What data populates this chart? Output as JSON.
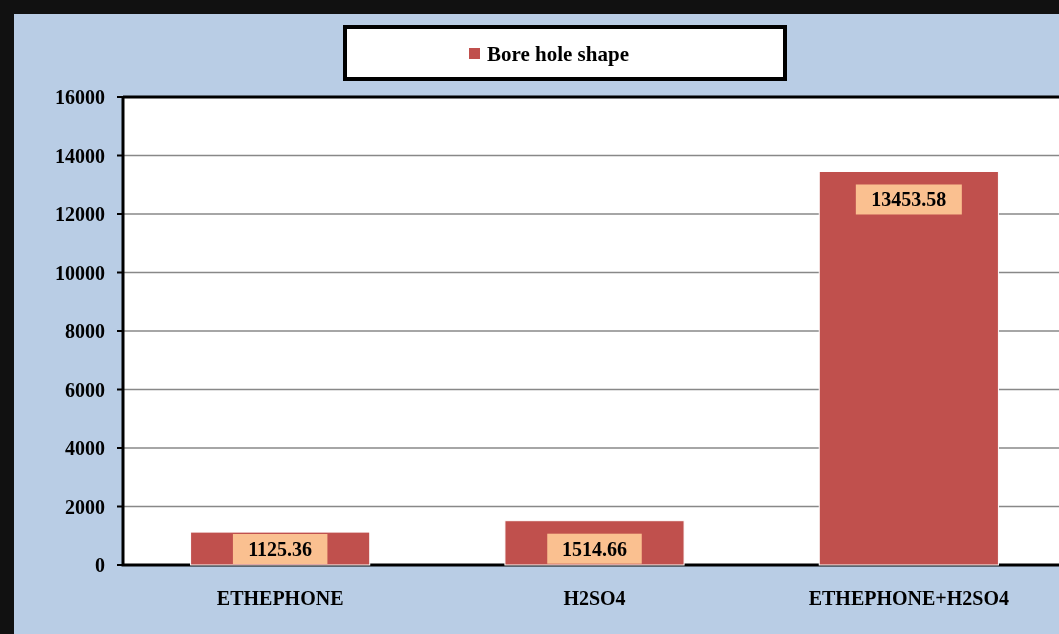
{
  "chart_data": {
    "type": "bar",
    "categories": [
      "ETHEPHONE",
      "H2SO4",
      "ETHEPHONE+H2SO4"
    ],
    "series": [
      {
        "name": "Bore hole shape",
        "color": "#c0504d",
        "values": [
          1125.36,
          1514.66,
          13453.58
        ]
      }
    ],
    "ylim": [
      0,
      16000
    ],
    "yticks": [
      0,
      2000,
      4000,
      6000,
      8000,
      10000,
      12000,
      14000,
      16000
    ],
    "grid": "y",
    "legend": "top",
    "data_labels": true
  }
}
